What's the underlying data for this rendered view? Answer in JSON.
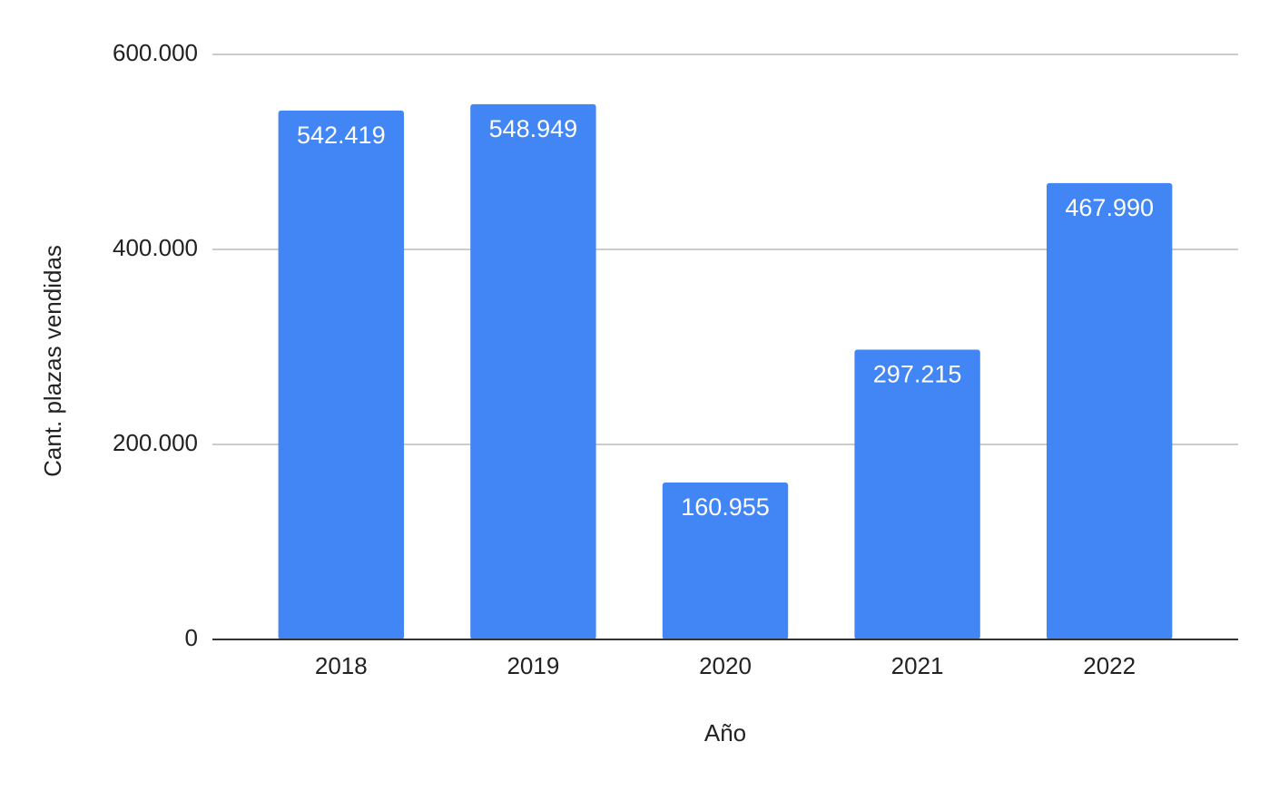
{
  "chart_data": {
    "type": "bar",
    "x_label": "Año",
    "y_label": "Cant. plazas vendidas",
    "categories": [
      "2018",
      "2019",
      "2020",
      "2021",
      "2022"
    ],
    "values": [
      542419,
      548949,
      160955,
      297215,
      467990
    ],
    "value_labels": [
      "542.419",
      "548.949",
      "160.955",
      "297.215",
      "467.990"
    ],
    "color": "#4285f4",
    "ylim": [
      0,
      600000
    ],
    "yticks": [
      0,
      {
        "value": 200000,
        "label": "200.000"
      },
      {
        "value": 400000,
        "label": "400.000"
      },
      {
        "value": 600000,
        "label": "600.000"
      }
    ],
    "grid": true
  }
}
